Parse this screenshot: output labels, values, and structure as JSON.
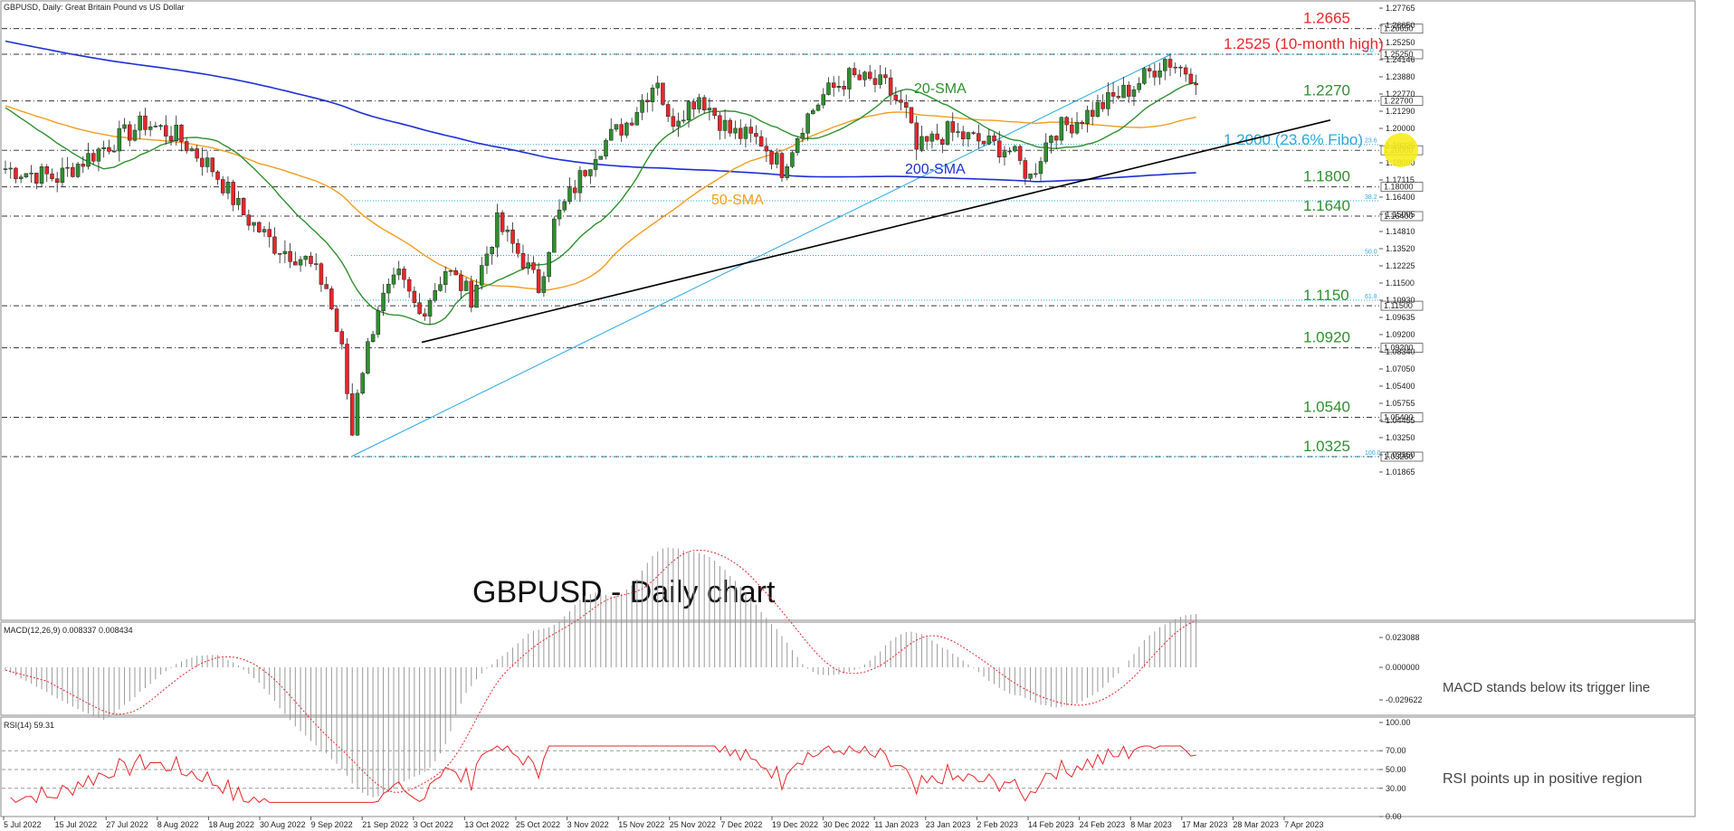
{
  "chart_data": {
    "type": "candlestick",
    "header": "GBPUSD, Daily:  Great Britain Pound vs US Dollar",
    "title": "GBPUSD - Daily chart",
    "price_axis_ticks": [
      "1.27765",
      "1.26650",
      "1.25250",
      "1.24146",
      "1.23880",
      "1.22770",
      "1.21290",
      "1.20000",
      "1.19225",
      "1.18000",
      "1.17115",
      "1.16400",
      "1.15005",
      "1.14810",
      "1.13520",
      "1.12225",
      "1.11500",
      "1.10930",
      "1.09635",
      "1.09200",
      "1.08340",
      "1.07050",
      "1.05400",
      "1.05755",
      "1.04455",
      "1.03250",
      "1.03160",
      "1.01865"
    ],
    "ylim": [
      1.013,
      1.282
    ],
    "levels": [
      {
        "price": 1.2665,
        "label": "1.2665",
        "color": "#e8262b",
        "box": "1.26650"
      },
      {
        "price": 1.2525,
        "label": "1.2525 (10-month high)",
        "color": "#e8262b",
        "box": "1.25250"
      },
      {
        "price": 1.227,
        "label": "1.2270",
        "color": "#2f8f2f",
        "box": "1.22700"
      },
      {
        "price": 1.2,
        "label": "1.2000 (23.6% Fibo)",
        "color": "#29a8e0",
        "box": "1.20000"
      },
      {
        "price": 1.18,
        "label": "1.1800",
        "color": "#2f8f2f",
        "box": "1.18000"
      },
      {
        "price": 1.164,
        "label": "1.1640",
        "color": "#2f8f2f",
        "box": "1.16400"
      },
      {
        "price": 1.115,
        "label": "1.1150",
        "color": "#2f8f2f",
        "box": "1.11500"
      },
      {
        "price": 1.092,
        "label": "1.0920",
        "color": "#2f8f2f",
        "box": "1.09200"
      },
      {
        "price": 1.054,
        "label": "1.0540",
        "color": "#2f8f2f",
        "box": "1.05400"
      },
      {
        "price": 1.0325,
        "label": "1.0325",
        "color": "#2f8f2f",
        "box": "1.03250"
      }
    ],
    "fibo_labels": [
      {
        "price": 1.2525,
        "text": "0.0"
      },
      {
        "price": 1.2032,
        "text": "23.6"
      },
      {
        "price": 1.1724,
        "text": "38.2"
      },
      {
        "price": 1.1425,
        "text": "50.0"
      },
      {
        "price": 1.118,
        "text": "61.8"
      },
      {
        "price": 1.0325,
        "text": "100.0"
      }
    ],
    "annotations": [
      {
        "text": "20-SMA",
        "color": "#2f8f2f"
      },
      {
        "text": "50-SMA",
        "color": "#f39c1f"
      },
      {
        "text": "200-SMA",
        "color": "#1c2fd8"
      }
    ],
    "x_labels": [
      "5 Jul 2022",
      "15 Jul 2022",
      "27 Jul 2022",
      "8 Aug 2022",
      "18 Aug 2022",
      "30 Aug 2022",
      "9 Sep 2022",
      "21 Sep 2022",
      "3 Oct 2022",
      "13 Oct 2022",
      "25 Oct 2022",
      "3 Nov 2022",
      "15 Nov 2022",
      "25 Nov 2022",
      "7 Dec 2022",
      "19 Dec 2022",
      "30 Dec 2022",
      "11 Jan 2023",
      "23 Jan 2023",
      "2 Feb 2023",
      "14 Feb 2023",
      "24 Feb 2023",
      "8 Mar 2023",
      "17 Mar 2023",
      "28 Mar 2023",
      "7 Apr 2023"
    ],
    "close_path": [
      [
        0,
        1.19
      ],
      [
        10,
        1.185
      ],
      [
        18,
        1.2
      ],
      [
        27,
        1.215
      ],
      [
        33,
        1.208
      ],
      [
        40,
        1.19
      ],
      [
        46,
        1.165
      ],
      [
        52,
        1.148
      ],
      [
        58,
        1.14
      ],
      [
        62,
        1.125
      ],
      [
        65,
        1.09
      ],
      [
        67,
        1.045
      ],
      [
        68,
        1.07
      ],
      [
        72,
        1.115
      ],
      [
        76,
        1.13
      ],
      [
        80,
        1.11
      ],
      [
        85,
        1.135
      ],
      [
        90,
        1.12
      ],
      [
        95,
        1.16
      ],
      [
        100,
        1.14
      ],
      [
        103,
        1.125
      ],
      [
        106,
        1.16
      ],
      [
        110,
        1.18
      ],
      [
        114,
        1.2
      ],
      [
        120,
        1.215
      ],
      [
        126,
        1.24
      ],
      [
        128,
        1.215
      ],
      [
        134,
        1.23
      ],
      [
        140,
        1.21
      ],
      [
        146,
        1.205
      ],
      [
        150,
        1.19
      ],
      [
        154,
        1.215
      ],
      [
        158,
        1.23
      ],
      [
        163,
        1.24
      ],
      [
        170,
        1.235
      ],
      [
        174,
        1.22
      ],
      [
        176,
        1.2
      ],
      [
        182,
        1.21
      ],
      [
        188,
        1.205
      ],
      [
        194,
        1.2
      ],
      [
        198,
        1.185
      ],
      [
        202,
        1.21
      ],
      [
        206,
        1.215
      ],
      [
        212,
        1.225
      ],
      [
        218,
        1.235
      ],
      [
        224,
        1.25
      ],
      [
        227,
        1.245
      ],
      [
        230,
        1.241
      ]
    ],
    "macd": {
      "label": "MACD(12,26,9) 0.008337 0.008434",
      "ticks": [
        "0.023088",
        "0.000000",
        "-0.029622"
      ],
      "note": "MACD stands below its trigger line"
    },
    "rsi": {
      "label": "RSI(14) 59.31",
      "ticks": [
        "100.00",
        "70.00",
        "50.00",
        "30.00",
        "0.00"
      ],
      "note": "RSI points up in positive region"
    },
    "colors": {
      "up": "#2f8f2f",
      "down": "#e8262b",
      "sma20": "#2f8f2f",
      "sma50": "#f39c1f",
      "sma200": "#1c2fd8",
      "fibo": "#29a8e0",
      "trend": "#000000",
      "macd_signal": "#e8262b",
      "rsi": "#e8262b"
    }
  }
}
